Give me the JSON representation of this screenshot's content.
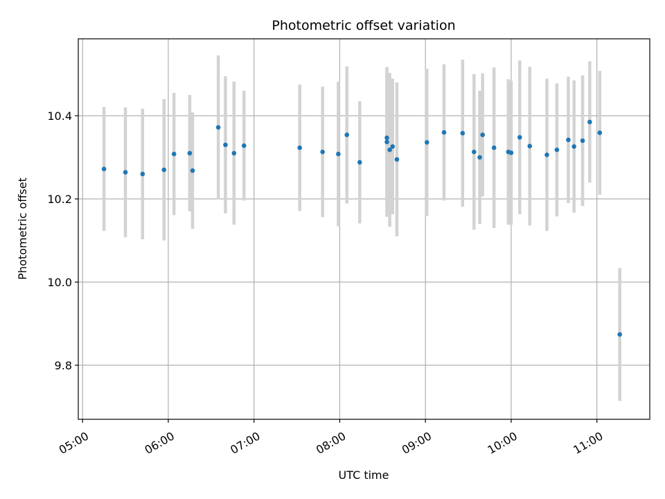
{
  "chart_data": {
    "type": "scatter",
    "title": "Photometric offset variation",
    "xlabel": "UTC time",
    "ylabel": "Photometric offset",
    "x_ticks": [
      "05:00",
      "06:00",
      "07:00",
      "08:00",
      "09:00",
      "10:00",
      "11:00"
    ],
    "y_ticks": [
      "9.8",
      "10.0",
      "10.2",
      "10.4"
    ],
    "xlim": [
      "04:57",
      "11:37"
    ],
    "ylim": [
      9.67,
      10.585
    ],
    "grid": true,
    "colors": {
      "point": "#1f77b4",
      "errorbar": "#d3d3d3",
      "grid": "#b0b0b0"
    },
    "points": [
      {
        "x": "05:15",
        "y": 10.272,
        "err": 0.149
      },
      {
        "x": "05:30",
        "y": 10.264,
        "err": 0.156
      },
      {
        "x": "05:42",
        "y": 10.26,
        "err": 0.157
      },
      {
        "x": "05:57",
        "y": 10.27,
        "err": 0.17
      },
      {
        "x": "06:04",
        "y": 10.308,
        "err": 0.147
      },
      {
        "x": "06:15",
        "y": 10.31,
        "err": 0.14
      },
      {
        "x": "06:17",
        "y": 10.268,
        "err": 0.14
      },
      {
        "x": "06:35",
        "y": 10.372,
        "err": 0.173
      },
      {
        "x": "06:40",
        "y": 10.33,
        "err": 0.165
      },
      {
        "x": "06:46",
        "y": 10.31,
        "err": 0.172
      },
      {
        "x": "06:53",
        "y": 10.328,
        "err": 0.132
      },
      {
        "x": "07:32",
        "y": 10.323,
        "err": 0.152
      },
      {
        "x": "07:48",
        "y": 10.313,
        "err": 0.157
      },
      {
        "x": "07:59",
        "y": 10.308,
        "err": 0.174
      },
      {
        "x": "08:05",
        "y": 10.354,
        "err": 0.165
      },
      {
        "x": "08:14",
        "y": 10.288,
        "err": 0.147
      },
      {
        "x": "08:33",
        "y": 10.347,
        "err": 0.168
      },
      {
        "x": "08:33",
        "y": 10.337,
        "err": 0.18
      },
      {
        "x": "08:35",
        "y": 10.318,
        "err": 0.185
      },
      {
        "x": "08:37",
        "y": 10.326,
        "err": 0.163
      },
      {
        "x": "08:40",
        "y": 10.295,
        "err": 0.185
      },
      {
        "x": "09:01",
        "y": 10.336,
        "err": 0.177
      },
      {
        "x": "09:13",
        "y": 10.36,
        "err": 0.164
      },
      {
        "x": "09:26",
        "y": 10.358,
        "err": 0.177
      },
      {
        "x": "09:34",
        "y": 10.313,
        "err": 0.187
      },
      {
        "x": "09:38",
        "y": 10.3,
        "err": 0.16
      },
      {
        "x": "09:40",
        "y": 10.354,
        "err": 0.148
      },
      {
        "x": "09:48",
        "y": 10.323,
        "err": 0.193
      },
      {
        "x": "09:58",
        "y": 10.313,
        "err": 0.175
      },
      {
        "x": "10:00",
        "y": 10.311,
        "err": 0.173
      },
      {
        "x": "10:06",
        "y": 10.348,
        "err": 0.185
      },
      {
        "x": "10:13",
        "y": 10.327,
        "err": 0.191
      },
      {
        "x": "10:25",
        "y": 10.306,
        "err": 0.183
      },
      {
        "x": "10:32",
        "y": 10.318,
        "err": 0.16
      },
      {
        "x": "10:40",
        "y": 10.342,
        "err": 0.152
      },
      {
        "x": "10:44",
        "y": 10.326,
        "err": 0.159
      },
      {
        "x": "10:50",
        "y": 10.34,
        "err": 0.157
      },
      {
        "x": "10:55",
        "y": 10.385,
        "err": 0.146
      },
      {
        "x": "11:02",
        "y": 10.359,
        "err": 0.149
      },
      {
        "x": "11:16",
        "y": 9.874,
        "err": 0.16
      }
    ]
  }
}
